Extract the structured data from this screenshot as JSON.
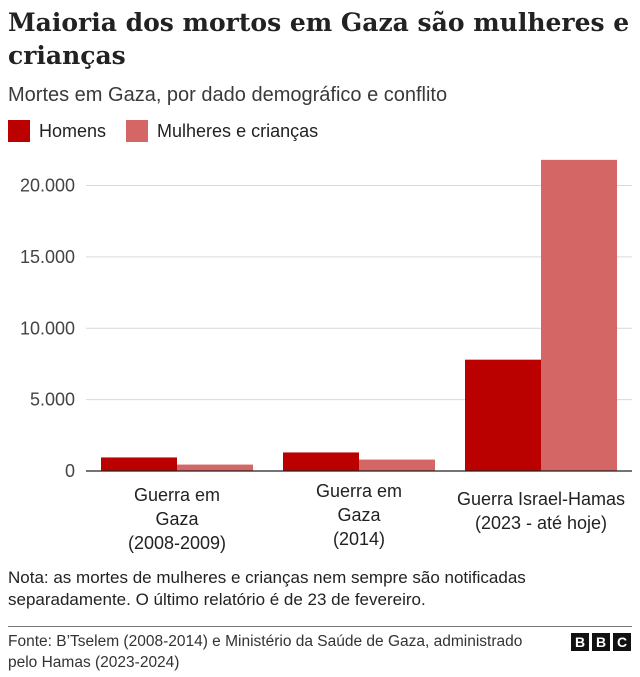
{
  "title": "Maioria dos mortos em Gaza são mulheres e crianças",
  "subtitle": "Mortes em Gaza, por dado demográfico e conflito",
  "note": "Nota: as mortes de mulheres e crianças nem sempre são notificadas separadamente. O último relatório é de 23 de fevereiro.",
  "source": "Fonte: B’Tselem (2008-2014) e Ministério da Saúde de Gaza, administrado pelo Hamas (2023-2024)",
  "logo": [
    "B",
    "B",
    "C"
  ],
  "colors": {
    "men": "#bb0000",
    "women_children": "#d56666",
    "grid": "#d9d9d9",
    "axis": "#222222"
  },
  "chart_data": {
    "type": "bar",
    "categories": [
      [
        "Guerra em",
        "Gaza",
        "(2008-2009)"
      ],
      [
        "Guerra em",
        "Gaza",
        "(2014)"
      ],
      [
        "Guerra Israel-Hamas",
        "(2023 - até hoje)"
      ]
    ],
    "series": [
      {
        "name": "Homens",
        "values": [
          950,
          1300,
          7800
        ]
      },
      {
        "name": "Mulheres e crianças",
        "values": [
          450,
          800,
          21800
        ]
      }
    ],
    "yticks": [
      0,
      5000,
      10000,
      15000,
      20000
    ],
    "ytick_labels": [
      "0",
      "5.000",
      "10.000",
      "15.000",
      "20.000"
    ],
    "ylim": [
      0,
      22000
    ],
    "grid": true,
    "legend_position": "top-left"
  }
}
